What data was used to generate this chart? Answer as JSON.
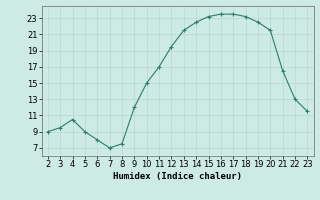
{
  "x": [
    2,
    3,
    4,
    5,
    6,
    7,
    8,
    9,
    10,
    11,
    12,
    13,
    14,
    15,
    16,
    17,
    18,
    19,
    20,
    21,
    22,
    23
  ],
  "y": [
    9,
    9.5,
    10.5,
    9,
    8,
    7,
    7.5,
    12,
    15,
    17,
    19.5,
    21.5,
    22.5,
    23.2,
    23.5,
    23.5,
    23.2,
    22.5,
    21.5,
    16.5,
    13,
    11.5
  ],
  "line_color": "#2e7d6e",
  "marker": "+",
  "bg_color": "#cdeae4",
  "grid_color": "#b8d8d2",
  "axis_color": "#666666",
  "xlabel": "Humidex (Indice chaleur)",
  "ylabel_ticks": [
    7,
    9,
    11,
    13,
    15,
    17,
    19,
    21,
    23
  ],
  "xlim": [
    1.5,
    23.5
  ],
  "ylim": [
    6.0,
    24.5
  ],
  "xticks": [
    2,
    3,
    4,
    5,
    6,
    7,
    8,
    9,
    10,
    11,
    12,
    13,
    14,
    15,
    16,
    17,
    18,
    19,
    20,
    21,
    22,
    23
  ],
  "label_fontsize": 6.5,
  "tick_fontsize": 6.0,
  "marker_size": 3.0,
  "line_width": 0.8
}
